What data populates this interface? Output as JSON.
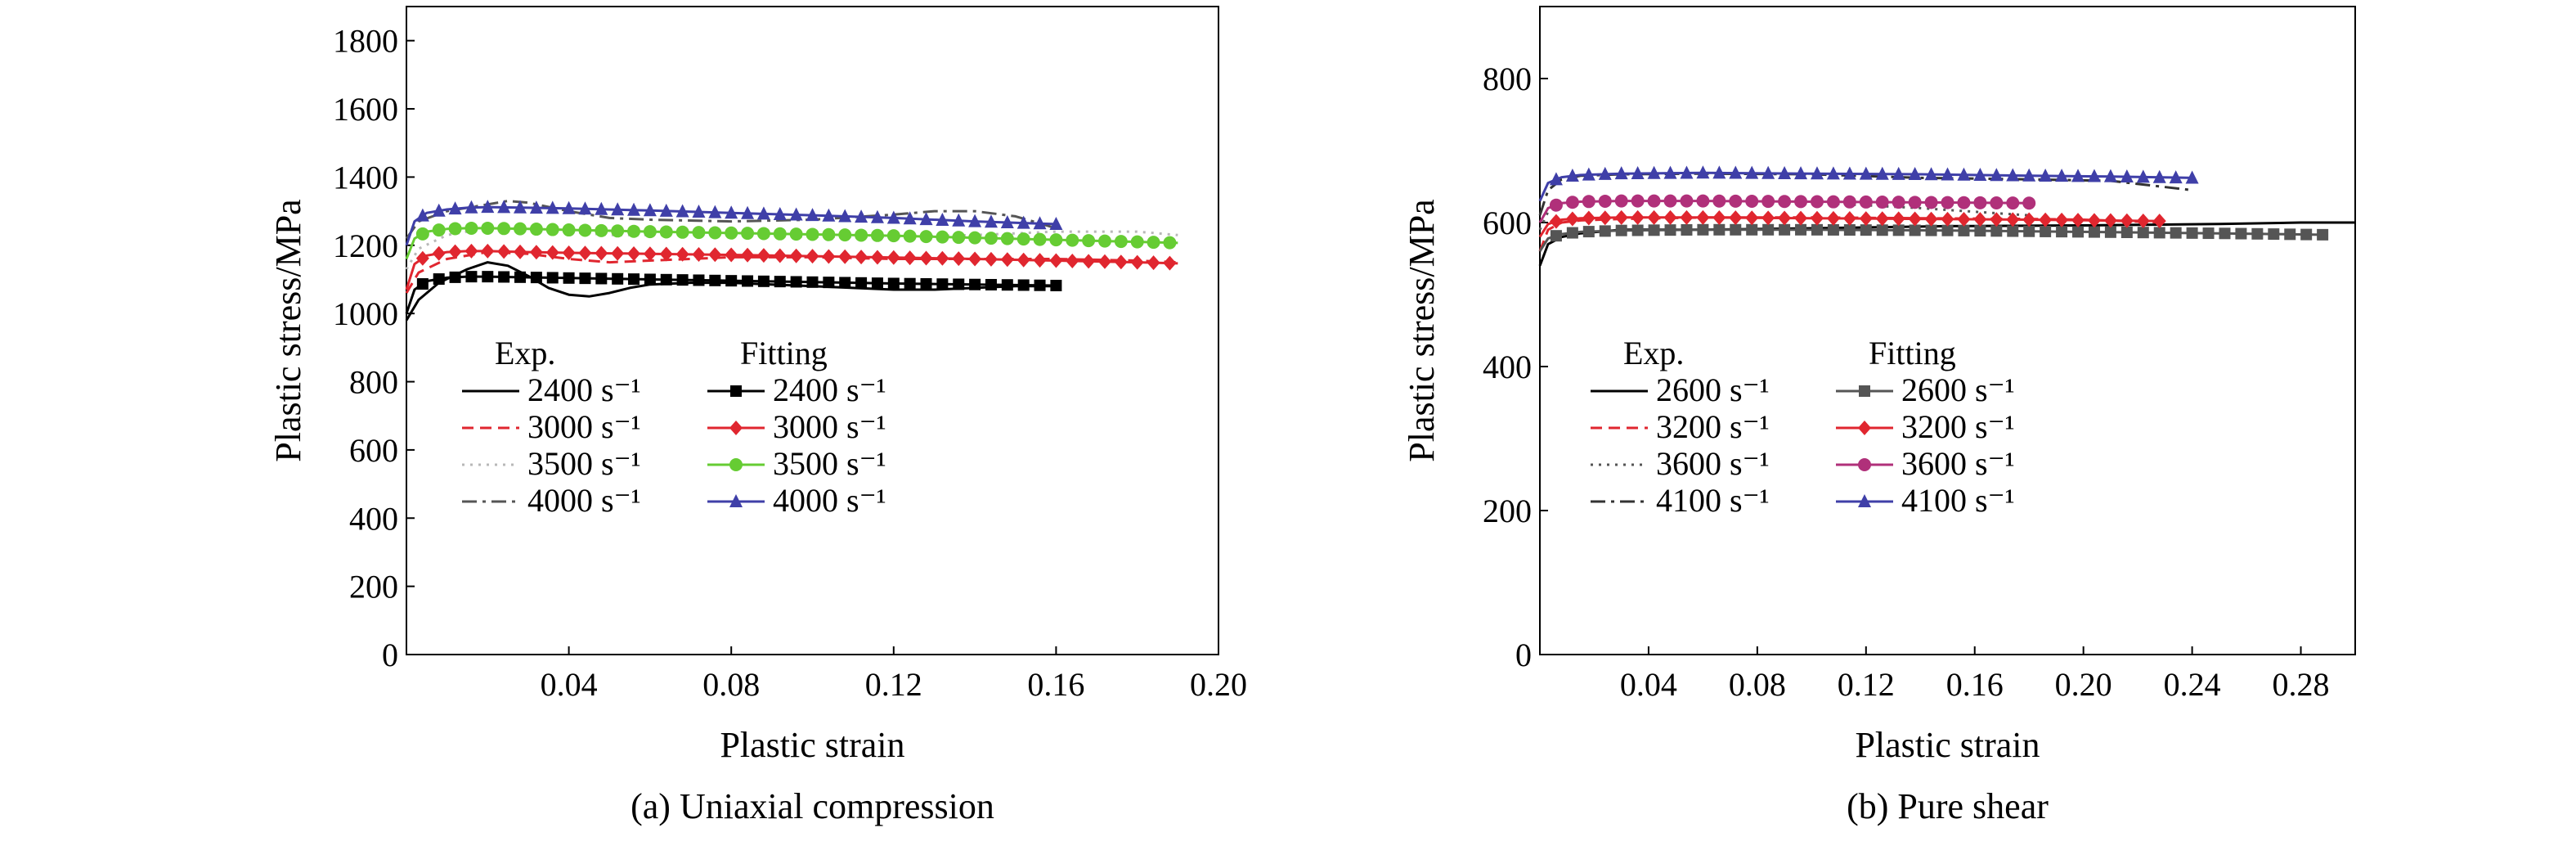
{
  "chart_data": [
    {
      "type": "line",
      "caption": "(a) Uniaxial compression",
      "xlabel": "Plastic strain",
      "ylabel": "Plastic stress/MPa",
      "xlim": [
        0,
        0.2
      ],
      "ylim": [
        0,
        1900
      ],
      "xticks": [
        0.04,
        0.08,
        0.12,
        0.16,
        0.2
      ],
      "xtick_labels": [
        "0.04",
        "0.08",
        "0.12",
        "0.16",
        "0.20"
      ],
      "yticks": [
        0,
        200,
        400,
        600,
        800,
        1000,
        1200,
        1400,
        1600,
        1800
      ],
      "ytick_labels": [
        "0",
        "200",
        "400",
        "600",
        "800",
        "1000",
        "1200",
        "1400",
        "1600",
        "1800"
      ],
      "legend": {
        "exp_header": "Exp.",
        "fit_header": "Fitting",
        "position": "center-left"
      },
      "series": [
        {
          "name": "2400 s⁻¹",
          "group": "exp",
          "color": "#000000",
          "style": "solid",
          "x": [
            0,
            0.003,
            0.008,
            0.015,
            0.02,
            0.025,
            0.03,
            0.035,
            0.04,
            0.045,
            0.05,
            0.055,
            0.06,
            0.07,
            0.08,
            0.09,
            0.1,
            0.11,
            0.12,
            0.13,
            0.14,
            0.15,
            0.16
          ],
          "y": [
            980,
            1040,
            1090,
            1130,
            1150,
            1140,
            1110,
            1075,
            1055,
            1050,
            1060,
            1075,
            1085,
            1090,
            1090,
            1085,
            1080,
            1075,
            1070,
            1070,
            1075,
            1080,
            1080
          ]
        },
        {
          "name": "3000 s⁻¹",
          "group": "exp",
          "color": "#e0262f",
          "style": "dash",
          "x": [
            0,
            0.003,
            0.01,
            0.02,
            0.03,
            0.04,
            0.05,
            0.06,
            0.08,
            0.1,
            0.12,
            0.14,
            0.16,
            0.18,
            0.19
          ],
          "y": [
            1060,
            1120,
            1160,
            1180,
            1175,
            1160,
            1150,
            1155,
            1165,
            1165,
            1160,
            1160,
            1160,
            1155,
            1150
          ]
        },
        {
          "name": "3500 s⁻¹",
          "group": "exp",
          "color": "#b8b8b8",
          "style": "dot",
          "x": [
            0,
            0.003,
            0.01,
            0.02,
            0.03,
            0.04,
            0.05,
            0.06,
            0.08,
            0.1,
            0.12,
            0.14,
            0.16,
            0.18,
            0.19
          ],
          "y": [
            1130,
            1190,
            1230,
            1250,
            1250,
            1240,
            1230,
            1230,
            1230,
            1225,
            1225,
            1230,
            1240,
            1240,
            1230
          ]
        },
        {
          "name": "4000 s⁻¹",
          "group": "exp",
          "color": "#555555",
          "style": "dashdot",
          "x": [
            0,
            0.003,
            0.01,
            0.02,
            0.025,
            0.03,
            0.04,
            0.05,
            0.06,
            0.08,
            0.1,
            0.12,
            0.13,
            0.14,
            0.15,
            0.16
          ],
          "y": [
            1220,
            1270,
            1300,
            1320,
            1330,
            1325,
            1300,
            1280,
            1275,
            1270,
            1275,
            1290,
            1300,
            1300,
            1285,
            1250
          ]
        },
        {
          "name": "2400 s⁻¹",
          "group": "fit",
          "color": "#000000",
          "style": "solid",
          "marker": "square",
          "x": [
            0,
            0.002,
            0.005,
            0.01,
            0.015,
            0.02,
            0.03,
            0.04,
            0.06,
            0.08,
            0.1,
            0.12,
            0.14,
            0.16
          ],
          "y": [
            1000,
            1070,
            1095,
            1105,
            1108,
            1108,
            1106,
            1104,
            1100,
            1096,
            1092,
            1088,
            1085,
            1082
          ]
        },
        {
          "name": "3000 s⁻¹",
          "group": "fit",
          "color": "#e0262f",
          "style": "solid",
          "marker": "diamond",
          "x": [
            0,
            0.002,
            0.005,
            0.01,
            0.015,
            0.02,
            0.03,
            0.04,
            0.06,
            0.08,
            0.1,
            0.12,
            0.14,
            0.16,
            0.18,
            0.19
          ],
          "y": [
            1070,
            1145,
            1170,
            1180,
            1183,
            1183,
            1180,
            1178,
            1175,
            1172,
            1168,
            1164,
            1160,
            1155,
            1150,
            1147
          ]
        },
        {
          "name": "3500 s⁻¹",
          "group": "fit",
          "color": "#66cc33",
          "style": "solid",
          "marker": "circle",
          "x": [
            0,
            0.002,
            0.005,
            0.01,
            0.015,
            0.02,
            0.03,
            0.04,
            0.06,
            0.08,
            0.1,
            0.12,
            0.14,
            0.16,
            0.18,
            0.19
          ],
          "y": [
            1160,
            1220,
            1240,
            1248,
            1250,
            1250,
            1248,
            1245,
            1240,
            1236,
            1232,
            1228,
            1222,
            1216,
            1210,
            1207
          ]
        },
        {
          "name": "4000 s⁻¹",
          "group": "fit",
          "color": "#3f3fa8",
          "style": "solid",
          "marker": "triangle",
          "x": [
            0,
            0.002,
            0.005,
            0.01,
            0.015,
            0.02,
            0.03,
            0.04,
            0.06,
            0.08,
            0.1,
            0.12,
            0.14,
            0.16
          ],
          "y": [
            1200,
            1270,
            1295,
            1305,
            1310,
            1312,
            1310,
            1308,
            1302,
            1295,
            1288,
            1280,
            1270,
            1262
          ]
        }
      ]
    },
    {
      "type": "line",
      "caption": "(b) Pure shear",
      "xlabel": "Plastic strain",
      "ylabel": "Plastic stress/MPa",
      "xlim": [
        0,
        0.3
      ],
      "ylim": [
        0,
        900
      ],
      "xticks": [
        0.04,
        0.08,
        0.12,
        0.16,
        0.2,
        0.24,
        0.28
      ],
      "xtick_labels": [
        "0.04",
        "0.08",
        "0.12",
        "0.16",
        "0.20",
        "0.24",
        "0.28"
      ],
      "yticks": [
        0,
        200,
        400,
        600,
        800
      ],
      "ytick_labels": [
        "0",
        "200",
        "400",
        "600",
        "800"
      ],
      "legend": {
        "exp_header": "Exp.",
        "fit_header": "Fitting",
        "position": "center-left"
      },
      "series": [
        {
          "name": "2600 s⁻¹",
          "group": "exp",
          "color": "#000000",
          "style": "solid",
          "x": [
            0,
            0.003,
            0.008,
            0.015,
            0.03,
            0.06,
            0.1,
            0.15,
            0.2,
            0.25,
            0.28,
            0.3
          ],
          "y": [
            540,
            570,
            580,
            585,
            590,
            590,
            592,
            595,
            596,
            598,
            600,
            600
          ]
        },
        {
          "name": "3200 s⁻¹",
          "group": "exp",
          "color": "#e0262f",
          "style": "dash",
          "x": [
            0,
            0.003,
            0.008,
            0.015,
            0.03,
            0.06,
            0.1,
            0.14,
            0.18,
            0.2,
            0.23
          ],
          "y": [
            560,
            590,
            600,
            603,
            605,
            607,
            607,
            606,
            605,
            604,
            600
          ]
        },
        {
          "name": "3600 s⁻¹",
          "group": "exp",
          "color": "#555555",
          "style": "dot",
          "x": [
            0,
            0.003,
            0.008,
            0.015,
            0.03,
            0.06,
            0.1,
            0.14,
            0.16,
            0.18
          ],
          "y": [
            590,
            615,
            625,
            628,
            630,
            630,
            628,
            620,
            615,
            610
          ]
        },
        {
          "name": "4100 s⁻¹",
          "group": "exp",
          "color": "#333333",
          "style": "dashdot",
          "x": [
            0,
            0.003,
            0.008,
            0.015,
            0.03,
            0.06,
            0.1,
            0.14,
            0.18,
            0.21,
            0.24
          ],
          "y": [
            610,
            645,
            660,
            665,
            667,
            668,
            667,
            662,
            660,
            658,
            645
          ]
        },
        {
          "name": "2600 s⁻¹",
          "group": "fit",
          "color": "#555555",
          "style": "solid",
          "marker": "square",
          "x": [
            0,
            0.003,
            0.008,
            0.015,
            0.03,
            0.06,
            0.1,
            0.15,
            0.2,
            0.25,
            0.29
          ],
          "y": [
            560,
            578,
            584,
            587,
            589,
            590,
            590,
            589,
            587,
            585,
            583
          ]
        },
        {
          "name": "3200 s⁻¹",
          "group": "fit",
          "color": "#e0262f",
          "style": "solid",
          "marker": "diamond",
          "x": [
            0,
            0.003,
            0.008,
            0.015,
            0.03,
            0.06,
            0.1,
            0.14,
            0.18,
            0.23
          ],
          "y": [
            580,
            598,
            604,
            606,
            607,
            607,
            606,
            605,
            604,
            602
          ]
        },
        {
          "name": "3600 s⁻¹",
          "group": "fit",
          "color": "#b0307a",
          "style": "solid",
          "marker": "circle",
          "x": [
            0,
            0.003,
            0.008,
            0.015,
            0.03,
            0.06,
            0.1,
            0.14,
            0.18
          ],
          "y": [
            600,
            620,
            627,
            629,
            630,
            630,
            629,
            628,
            627
          ]
        },
        {
          "name": "4100 s⁻¹",
          "group": "fit",
          "color": "#3f3fa8",
          "style": "solid",
          "marker": "triangle",
          "x": [
            0,
            0.003,
            0.008,
            0.015,
            0.03,
            0.06,
            0.1,
            0.14,
            0.18,
            0.21,
            0.24
          ],
          "y": [
            630,
            655,
            663,
            666,
            668,
            669,
            668,
            667,
            665,
            664,
            662
          ]
        }
      ]
    }
  ]
}
